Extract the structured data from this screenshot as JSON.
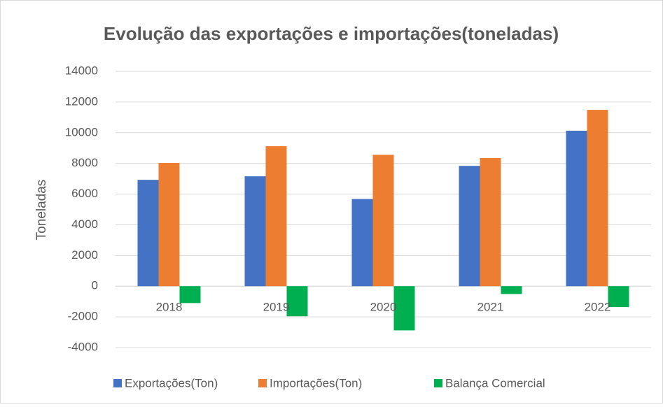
{
  "chart_data": {
    "type": "bar",
    "title": "Evolução das exportações e importações(toneladas)",
    "y_label": "Toneladas",
    "categories": [
      "2018",
      "2019",
      "2020",
      "2021",
      "2022"
    ],
    "series": [
      {
        "name": "Exportações(Ton)",
        "color": "#4472c4",
        "values": [
          6930,
          7160,
          5680,
          7840,
          10130
        ]
      },
      {
        "name": "Importações(Ton)",
        "color": "#ed7d31",
        "values": [
          8030,
          9120,
          8560,
          8350,
          11490
        ]
      },
      {
        "name": "Balança Comercial",
        "color": "#00b050",
        "values": [
          -1100,
          -1960,
          -2880,
          -510,
          -1360
        ]
      }
    ],
    "ylim": [
      -4000,
      14000
    ],
    "yticks": [
      -4000,
      -2000,
      0,
      2000,
      4000,
      6000,
      8000,
      10000,
      12000,
      14000
    ],
    "grid": true,
    "legend": "bottom"
  }
}
